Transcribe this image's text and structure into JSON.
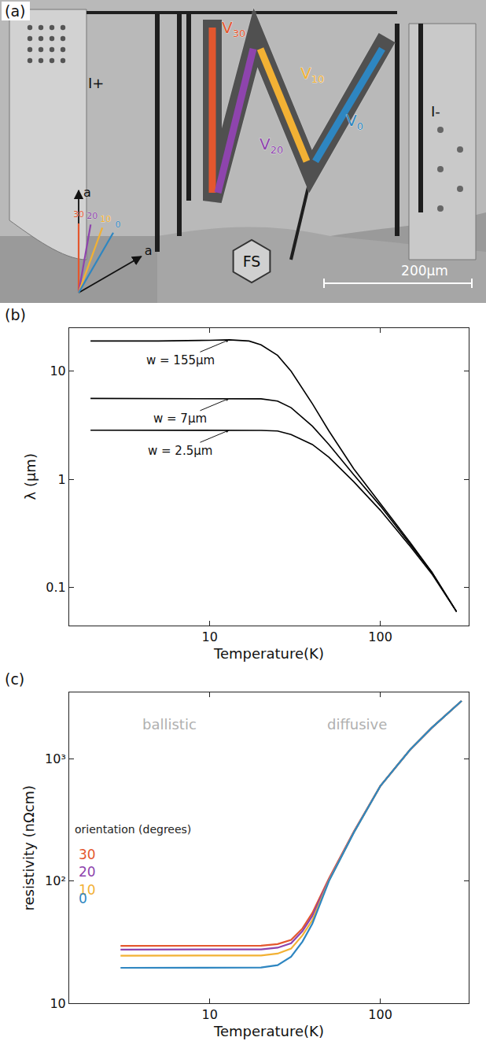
{
  "panel_a": {
    "label": "(a)",
    "current_plus": "I+",
    "current_minus": "I-",
    "fs_label": "FS",
    "scale_bar": "200μm",
    "crystal_axes": [
      "a",
      "a"
    ],
    "voltage_symbol": "V",
    "bars": [
      {
        "angle": 30,
        "color": "#e4572e"
      },
      {
        "angle": 20,
        "color": "#8e44ad"
      },
      {
        "angle": 10,
        "color": "#f2b134"
      },
      {
        "angle": 0,
        "color": "#2e86c1"
      }
    ]
  },
  "chart_data": [
    {
      "panel": "(b)",
      "type": "line",
      "log": true,
      "grid": false,
      "x_label": "Temperature(K)",
      "y_label": "λ (μm)",
      "xlim": [
        1.5,
        330
      ],
      "xticks": [
        10,
        100
      ],
      "ylim": [
        0.045,
        25
      ],
      "yticks": [
        0.1,
        1,
        10
      ],
      "x": [
        2,
        5,
        10,
        13,
        17,
        20,
        25,
        30,
        40,
        50,
        70,
        100,
        150,
        200,
        280
      ],
      "series": [
        {
          "name": "w = 155μm",
          "color": "#000000",
          "values": [
            19,
            19,
            19.3,
            19.5,
            19,
            17.5,
            14,
            10,
            5,
            2.8,
            1.25,
            0.6,
            0.26,
            0.14,
            0.06
          ]
        },
        {
          "name": "w = 7μm",
          "color": "#000000",
          "values": [
            5.6,
            5.6,
            5.6,
            5.6,
            5.6,
            5.55,
            5.3,
            4.6,
            3.1,
            2.1,
            1.1,
            0.57,
            0.25,
            0.14,
            0.06
          ]
        },
        {
          "name": "w = 2.5μm",
          "color": "#000000",
          "values": [
            2.85,
            2.85,
            2.85,
            2.85,
            2.85,
            2.84,
            2.8,
            2.6,
            2.1,
            1.6,
            0.95,
            0.52,
            0.24,
            0.135,
            0.06
          ]
        }
      ]
    },
    {
      "panel": "(c)",
      "type": "line",
      "log": true,
      "grid": false,
      "x_label": "Temperature(K)",
      "y_label": "resistivity (nΩcm)",
      "xlim": [
        1.5,
        330
      ],
      "xticks": [
        10,
        100
      ],
      "ylim": [
        10,
        3500
      ],
      "yticks": [
        10,
        {
          "value": 100,
          "label": "10²"
        },
        {
          "value": 1000,
          "label": "10³"
        }
      ],
      "annotations": [
        "ballistic",
        "diffusive",
        "orientation (degrees)"
      ],
      "x": [
        3,
        5,
        10,
        15,
        20,
        25,
        30,
        35,
        40,
        50,
        70,
        100,
        150,
        200,
        300
      ],
      "series": [
        {
          "name": "30",
          "color": "#e4572e",
          "values": [
            29.5,
            29.5,
            29.5,
            29.5,
            29.6,
            30.5,
            33,
            41,
            55,
            105,
            255,
            600,
            1200,
            1800,
            3000
          ]
        },
        {
          "name": "20",
          "color": "#8e44ad",
          "values": [
            27.5,
            27.5,
            27.5,
            27.5,
            27.6,
            28.5,
            31,
            39,
            52,
            103,
            253,
            600,
            1200,
            1800,
            3000
          ]
        },
        {
          "name": "10",
          "color": "#f2b134",
          "values": [
            24.5,
            24.5,
            24.5,
            24.5,
            24.6,
            25.5,
            28,
            36,
            48,
            101,
            251,
            600,
            1200,
            1800,
            3000
          ]
        },
        {
          "name": "0",
          "color": "#2e86c1",
          "values": [
            19.5,
            19.5,
            19.5,
            19.5,
            19.6,
            20.5,
            24,
            32,
            45,
            100,
            250,
            600,
            1200,
            1800,
            3000
          ]
        }
      ]
    }
  ]
}
